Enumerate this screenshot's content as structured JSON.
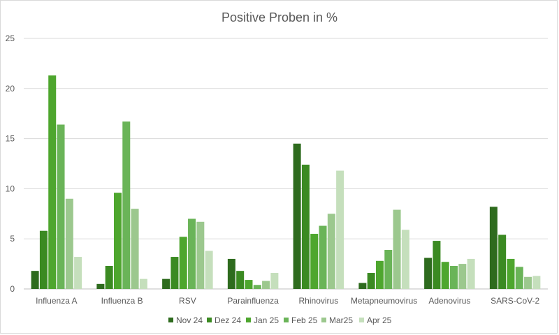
{
  "chart_data": {
    "type": "bar",
    "title": "Positive Proben in %",
    "xlabel": "",
    "ylabel": "",
    "ylim": [
      0,
      25
    ],
    "yticks": [
      0,
      5,
      10,
      15,
      20,
      25
    ],
    "grid": true,
    "legend_position": "bottom",
    "categories": [
      "Influenza A",
      "Influenza B",
      "RSV",
      "Parainfluenza",
      "Rhinovirus",
      "Metapneumovirus",
      "Adenovirus",
      "SARS-CoV-2"
    ],
    "series": [
      {
        "name": "Nov 24",
        "color": "#2e6b1e",
        "values": [
          1.8,
          0.5,
          1.0,
          3.0,
          14.5,
          0.6,
          3.1,
          8.2
        ]
      },
      {
        "name": "Dez 24",
        "color": "#3b8a22",
        "values": [
          5.8,
          2.3,
          3.2,
          1.8,
          12.4,
          1.6,
          4.8,
          5.4
        ]
      },
      {
        "name": "Jan 25",
        "color": "#4ea62e",
        "values": [
          21.3,
          9.6,
          5.2,
          0.9,
          5.5,
          2.8,
          2.7,
          3.0
        ]
      },
      {
        "name": "Feb 25",
        "color": "#6ab458",
        "values": [
          16.4,
          16.7,
          7.0,
          0.4,
          6.3,
          3.9,
          2.3,
          2.2
        ]
      },
      {
        "name": "Mar25",
        "color": "#9cc88e",
        "values": [
          9.0,
          8.0,
          6.7,
          0.8,
          7.5,
          7.9,
          2.5,
          1.2
        ]
      },
      {
        "name": "Apr 25",
        "color": "#c5dfbc",
        "values": [
          3.2,
          1.0,
          3.8,
          1.6,
          11.8,
          5.9,
          3.0,
          1.3
        ]
      }
    ]
  }
}
